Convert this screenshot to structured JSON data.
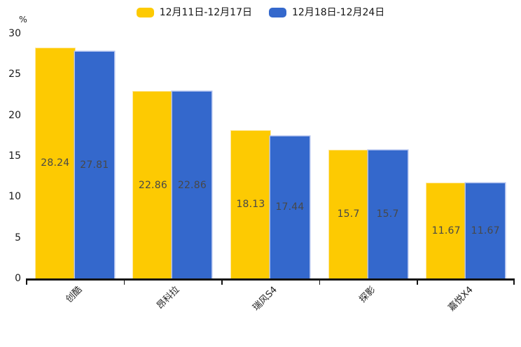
{
  "chart_data": {
    "type": "bar",
    "title": "",
    "unit_label": "%",
    "categories": [
      "创酷",
      "昂科拉",
      "瑞风S4",
      "探影",
      "嘉悦X4"
    ],
    "series": [
      {
        "name": "12月11日-12月17日",
        "color": "#FDCA02",
        "values": [
          28.24,
          22.86,
          18.13,
          15.7,
          11.67
        ],
        "labels": [
          "28.24",
          "22.86",
          "18.13",
          "15.7",
          "11.67"
        ]
      },
      {
        "name": "12月18日-12月24日",
        "color": "#3468CC",
        "values": [
          27.81,
          22.86,
          17.44,
          15.7,
          11.67
        ],
        "labels": [
          "27.81",
          "22.86",
          "17.44",
          "15.7",
          "11.67"
        ]
      }
    ],
    "ylim": [
      0,
      30
    ],
    "yticks": [
      0,
      5,
      10,
      15,
      20,
      25,
      30
    ],
    "grid": false,
    "legend_position": "top-center",
    "value_labels": "centered-inside-bars",
    "x_label_rotation_deg": -45,
    "colors": {
      "background": "#ffffff",
      "axis": "#141414",
      "tick_text": "#1a1a1a",
      "value_text": "#484848",
      "yellow_bar_edge": "#ffe596",
      "blue_bar_edge": "#aebfee"
    }
  }
}
